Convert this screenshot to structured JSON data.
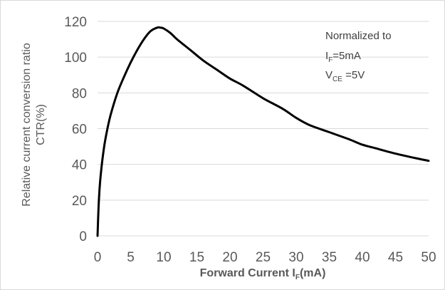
{
  "chart_data": {
    "type": "line",
    "xlabel": {
      "main": "Forward Current I",
      "sub": "F",
      "unit": "(mA)"
    },
    "ylabel": {
      "line1": "Relative current conversion ratio",
      "line2": "CTR(%)"
    },
    "xlim": [
      0,
      50
    ],
    "ylim": [
      0,
      120
    ],
    "x_ticks": [
      0,
      5,
      10,
      15,
      20,
      25,
      30,
      35,
      40,
      45,
      50
    ],
    "y_ticks": [
      0,
      20,
      40,
      60,
      80,
      100,
      120
    ],
    "grid": {
      "horizontal": true,
      "vertical": false
    },
    "annotation": {
      "line1": "Normalized to",
      "line2": {
        "main": "I",
        "sub": "F",
        "rest": "=5mA"
      },
      "line3": {
        "main": "V",
        "sub": "CE",
        "rest": " =5V"
      }
    },
    "series": [
      {
        "color": "#000000",
        "x": [
          0,
          0.2,
          0.5,
          1,
          1.5,
          2,
          3,
          4,
          5,
          6,
          7,
          8,
          9,
          9.5,
          10,
          11,
          12,
          14,
          16,
          18,
          20,
          22,
          25,
          28,
          30,
          32,
          35,
          38,
          40,
          42,
          45,
          48,
          50
        ],
        "y": [
          0,
          20,
          35,
          50,
          60,
          68,
          80,
          89,
          97,
          104,
          110,
          114.5,
          116.5,
          116.5,
          116,
          113.5,
          110,
          104,
          98,
          93,
          88,
          84,
          77,
          71,
          66,
          62,
          58,
          54,
          51,
          49,
          46,
          43.5,
          42
        ]
      }
    ]
  }
}
